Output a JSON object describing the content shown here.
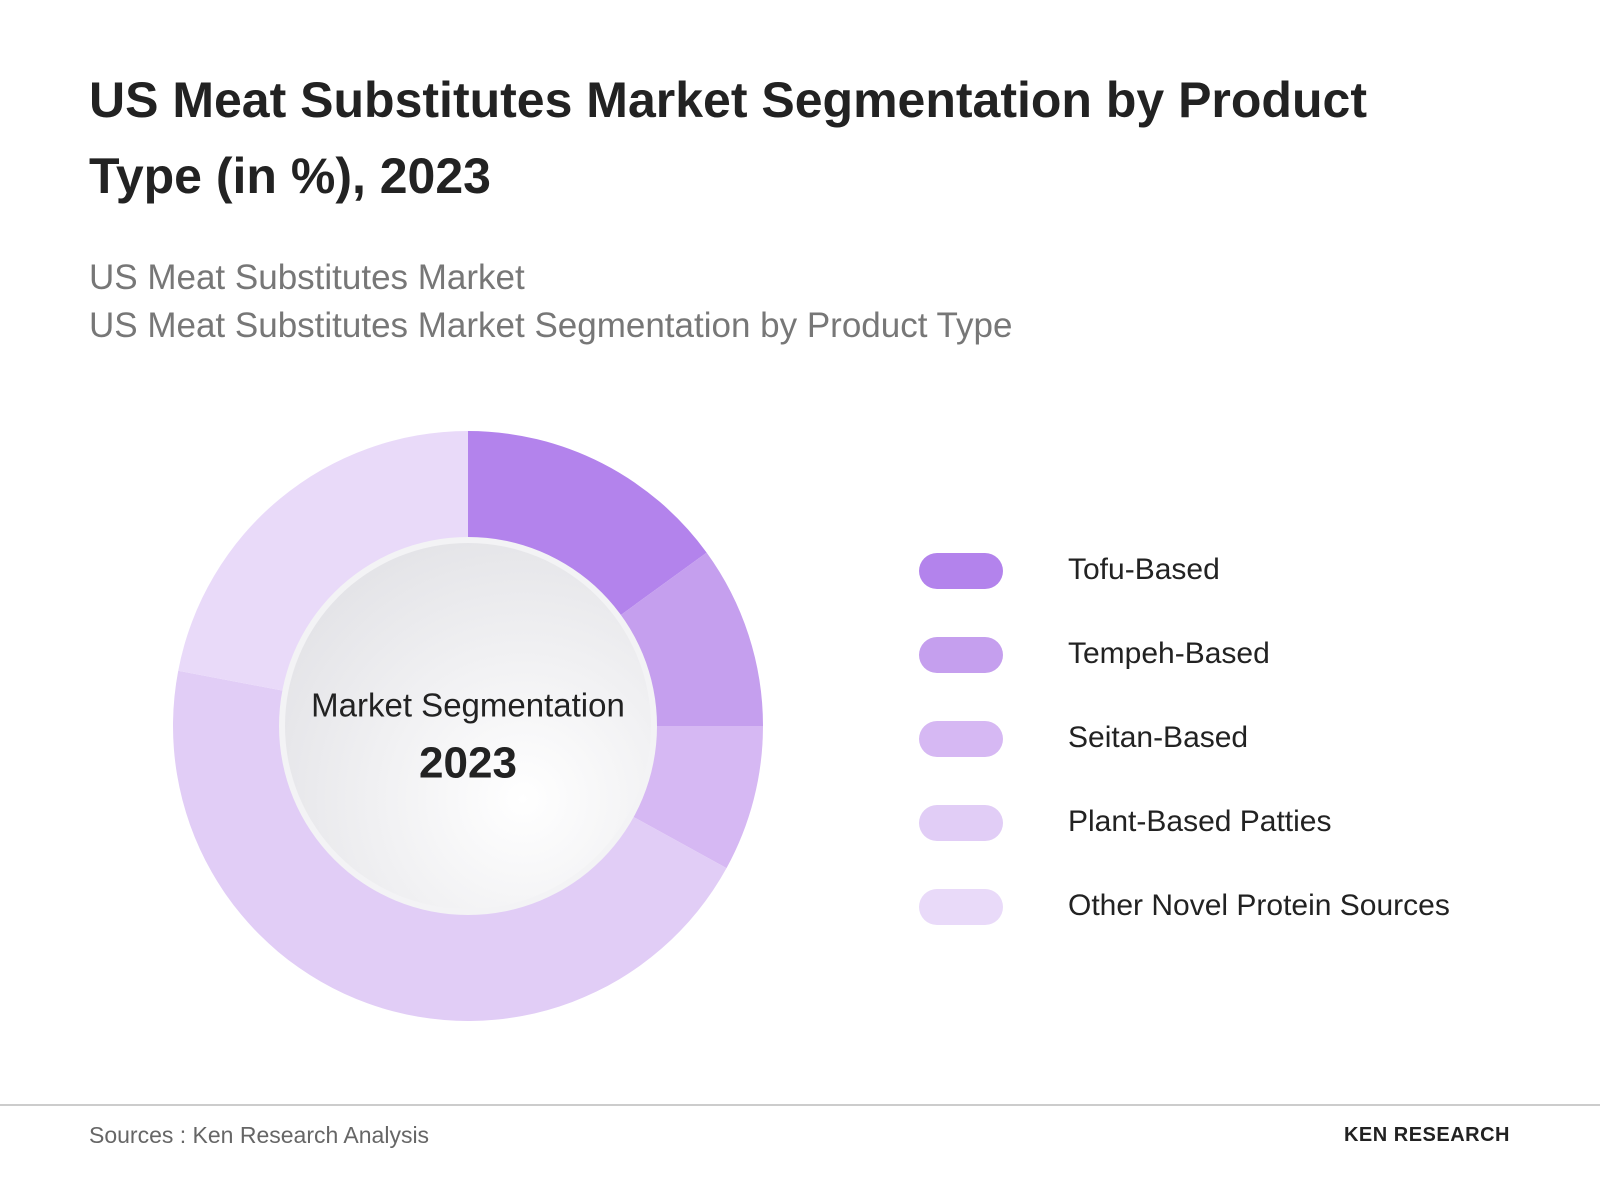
{
  "chart_data": {
    "type": "donut",
    "title": "US Meat Substitutes Market Segmentation by Product Type (in %), 2023",
    "subtitle": [
      "US Meat Substitutes Market",
      "US Meat Substitutes Market Segmentation by Product Type"
    ],
    "center_label": "Market Segmentation",
    "center_value": "2023",
    "categories": [
      "Tofu-Based",
      "Tempeh-Based",
      "Seitan-Based",
      "Plant-Based Patties",
      "Other Novel Protein Sources"
    ],
    "values": [
      15,
      10,
      8,
      45,
      22
    ],
    "colors": [
      "#b383ec",
      "#c59fee",
      "#d6b8f3",
      "#e1cdf6",
      "#e9daf9"
    ],
    "source": "Sources : Ken Research Analysis",
    "brand": "KEN RESEARCH"
  }
}
